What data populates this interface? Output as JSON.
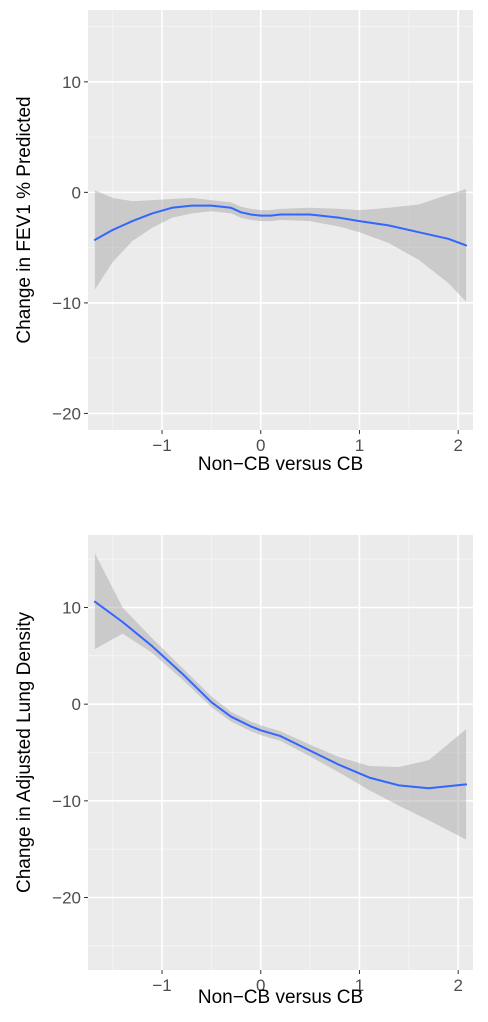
{
  "chart_data": [
    {
      "type": "line",
      "title": "",
      "xlabel": "Non−CB versus CB",
      "ylabel": "Change in FEV1 % Predicted",
      "xlim": [
        -1.75,
        2.15
      ],
      "ylim": [
        -21.5,
        16.5
      ],
      "xticks": [
        -1,
        0,
        1,
        2
      ],
      "xtick_labels": [
        "−1",
        "0",
        "1",
        "2"
      ],
      "yticks": [
        10,
        0,
        -10,
        -20
      ],
      "ytick_labels": [
        "10",
        "0",
        "−10",
        "−20"
      ],
      "grid": true,
      "series": [
        {
          "x": [
            -1.68,
            -1.5,
            -1.3,
            -1.1,
            -0.9,
            -0.7,
            -0.5,
            -0.3,
            -0.2,
            -0.1,
            0,
            0.1,
            0.2,
            0.5,
            0.8,
            1.0,
            1.3,
            1.6,
            1.9,
            2.08
          ],
          "y": [
            -4.3,
            -3.4,
            -2.6,
            -1.9,
            -1.4,
            -1.2,
            -1.2,
            -1.4,
            -1.8,
            -2.0,
            -2.1,
            -2.1,
            -2.0,
            -2.0,
            -2.3,
            -2.6,
            -3.0,
            -3.6,
            -4.2,
            -4.8
          ],
          "lower": [
            -8.8,
            -6.3,
            -4.4,
            -3.2,
            -2.3,
            -1.9,
            -1.7,
            -1.9,
            -2.3,
            -2.5,
            -2.6,
            -2.6,
            -2.5,
            -2.6,
            -3.1,
            -3.6,
            -4.6,
            -6.1,
            -8.2,
            -9.9
          ],
          "upper": [
            0.2,
            -0.5,
            -0.8,
            -0.7,
            -0.6,
            -0.5,
            -0.7,
            -0.9,
            -1.3,
            -1.5,
            -1.6,
            -1.6,
            -1.5,
            -1.4,
            -1.5,
            -1.6,
            -1.4,
            -1.1,
            -0.2,
            0.3
          ]
        }
      ]
    },
    {
      "type": "line",
      "title": "",
      "xlabel": "Non−CB versus CB",
      "ylabel": "Change in Adjusted Lung Density",
      "xlim": [
        -1.75,
        2.15
      ],
      "ylim": [
        -27.5,
        17.5
      ],
      "xticks": [
        -1,
        0,
        1,
        2
      ],
      "xtick_labels": [
        "−1",
        "0",
        "1",
        "2"
      ],
      "yticks": [
        10,
        0,
        -10,
        -20
      ],
      "ytick_labels": [
        "10",
        "0",
        "−10",
        "−20"
      ],
      "grid": true,
      "series": [
        {
          "x": [
            -1.68,
            -1.4,
            -1.1,
            -0.8,
            -0.5,
            -0.3,
            -0.1,
            0,
            0.2,
            0.5,
            0.8,
            1.1,
            1.4,
            1.7,
            2.08
          ],
          "y": [
            10.6,
            8.5,
            6.0,
            3.2,
            0.2,
            -1.3,
            -2.3,
            -2.7,
            -3.3,
            -4.8,
            -6.3,
            -7.6,
            -8.4,
            -8.7,
            -8.3
          ],
          "lower": [
            5.7,
            7.3,
            5.3,
            2.6,
            -0.3,
            -1.8,
            -2.8,
            -3.2,
            -3.8,
            -5.4,
            -7.1,
            -8.9,
            -10.5,
            -12.0,
            -14.0
          ],
          "upper": [
            15.6,
            10.0,
            6.8,
            3.8,
            0.8,
            -0.8,
            -1.8,
            -2.2,
            -2.8,
            -4.2,
            -5.5,
            -6.4,
            -6.5,
            -5.8,
            -2.6
          ]
        }
      ]
    }
  ]
}
